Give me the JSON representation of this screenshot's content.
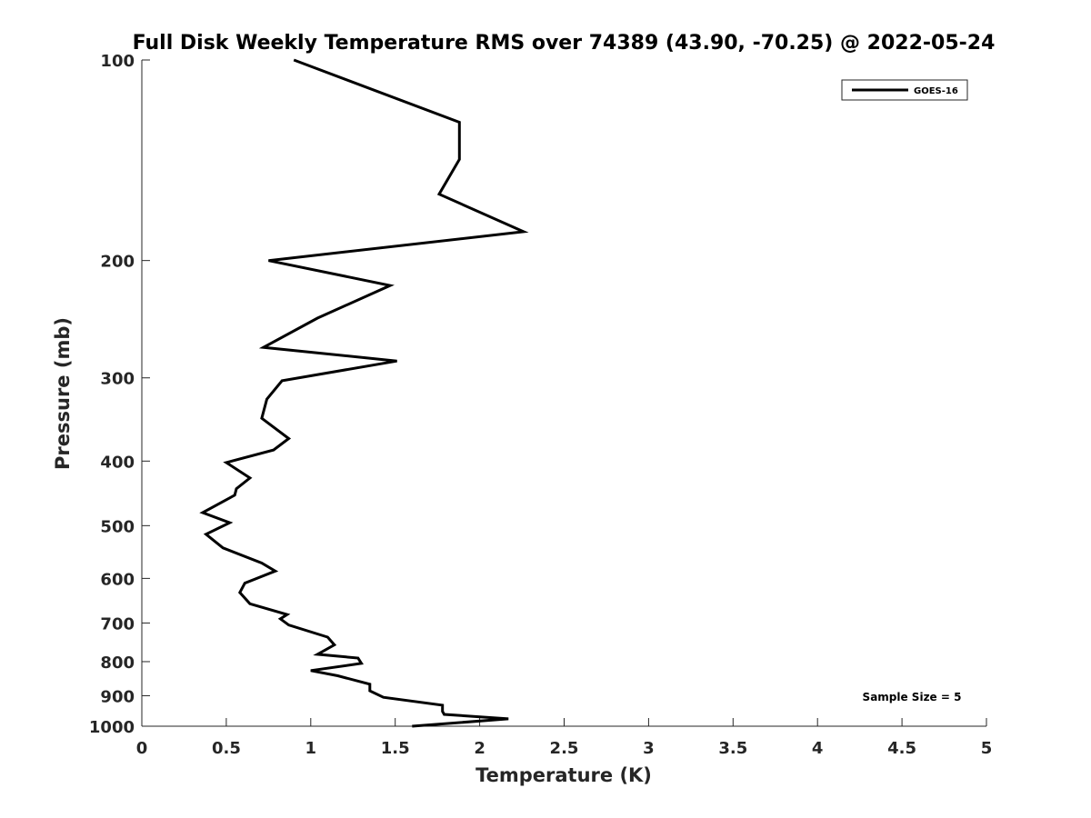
{
  "chart_data": {
    "type": "line",
    "title": "Full Disk Weekly Temperature RMS over 74389 (43.90, -70.25) @ 2022-05-24",
    "xlabel": "Temperature (K)",
    "ylabel": "Pressure (mb)",
    "xlim": [
      0,
      5
    ],
    "ylim": [
      100,
      1000
    ],
    "y_scale": "log",
    "y_reversed": true,
    "grid": false,
    "legend_position": "top-right",
    "x_ticks": [
      "0",
      "0.5",
      "1",
      "1.5",
      "2",
      "2.5",
      "3",
      "3.5",
      "4",
      "4.5",
      "5"
    ],
    "y_ticks": [
      "100",
      "200",
      "300",
      "400",
      "500",
      "600",
      "700",
      "800",
      "900",
      "1000"
    ],
    "series": [
      {
        "name": "GOES-16",
        "color": "#000000",
        "x": [
          0.9,
          1.88,
          1.88,
          1.76,
          2.26,
          0.75,
          1.47,
          1.04,
          0.72,
          1.51,
          0.83,
          0.74,
          0.71,
          0.87,
          0.78,
          0.5,
          0.64,
          0.56,
          0.55,
          0.36,
          0.52,
          0.38,
          0.48,
          0.71,
          0.79,
          0.61,
          0.58,
          0.64,
          0.86,
          0.82,
          0.87,
          1.1,
          1.14,
          1.04,
          1.28,
          1.3,
          1.0,
          1.16,
          1.35,
          1.35,
          1.43,
          1.78,
          1.78,
          1.79,
          2.17,
          1.6
        ],
        "y": [
          100,
          124,
          141,
          159,
          181,
          200,
          218,
          244,
          270,
          283,
          303,
          323,
          345,
          370,
          385,
          402,
          424,
          440,
          450,
          478,
          495,
          515,
          540,
          569,
          585,
          610,
          630,
          655,
          680,
          690,
          705,
          735,
          755,
          780,
          790,
          805,
          825,
          840,
          865,
          885,
          905,
          930,
          950,
          960,
          975,
          1000
        ]
      }
    ]
  },
  "annotation": "Sample Size = 5"
}
